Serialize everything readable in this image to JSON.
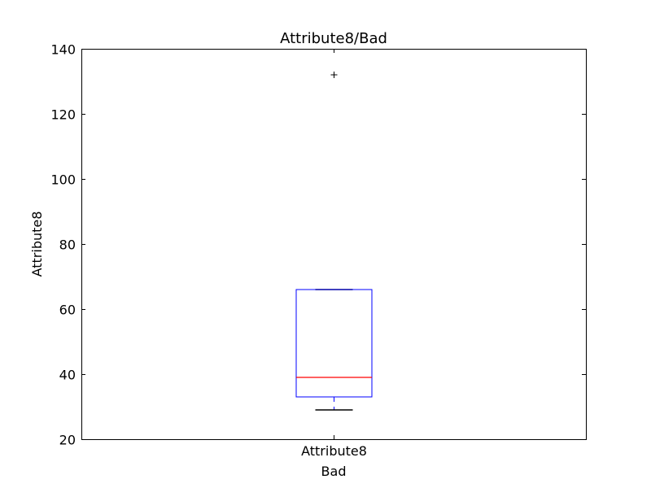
{
  "chart_data": {
    "type": "box",
    "title": "Attribute8/Bad",
    "xlabel": "Bad",
    "ylabel": "Attribute8",
    "categories": [
      "Attribute8"
    ],
    "ylim": [
      20,
      140
    ],
    "yticks": [
      20,
      40,
      60,
      80,
      100,
      120,
      140
    ],
    "grid": false,
    "boxes": [
      {
        "name": "Attribute8",
        "whisker_low": 29,
        "q1": 33,
        "median": 39,
        "q3": 66,
        "whisker_high": 66,
        "outliers": [
          132
        ]
      }
    ],
    "colors": {
      "box": "#0000ff",
      "median": "#ff0000",
      "cap": "#000000",
      "outlier": "#000000"
    }
  }
}
